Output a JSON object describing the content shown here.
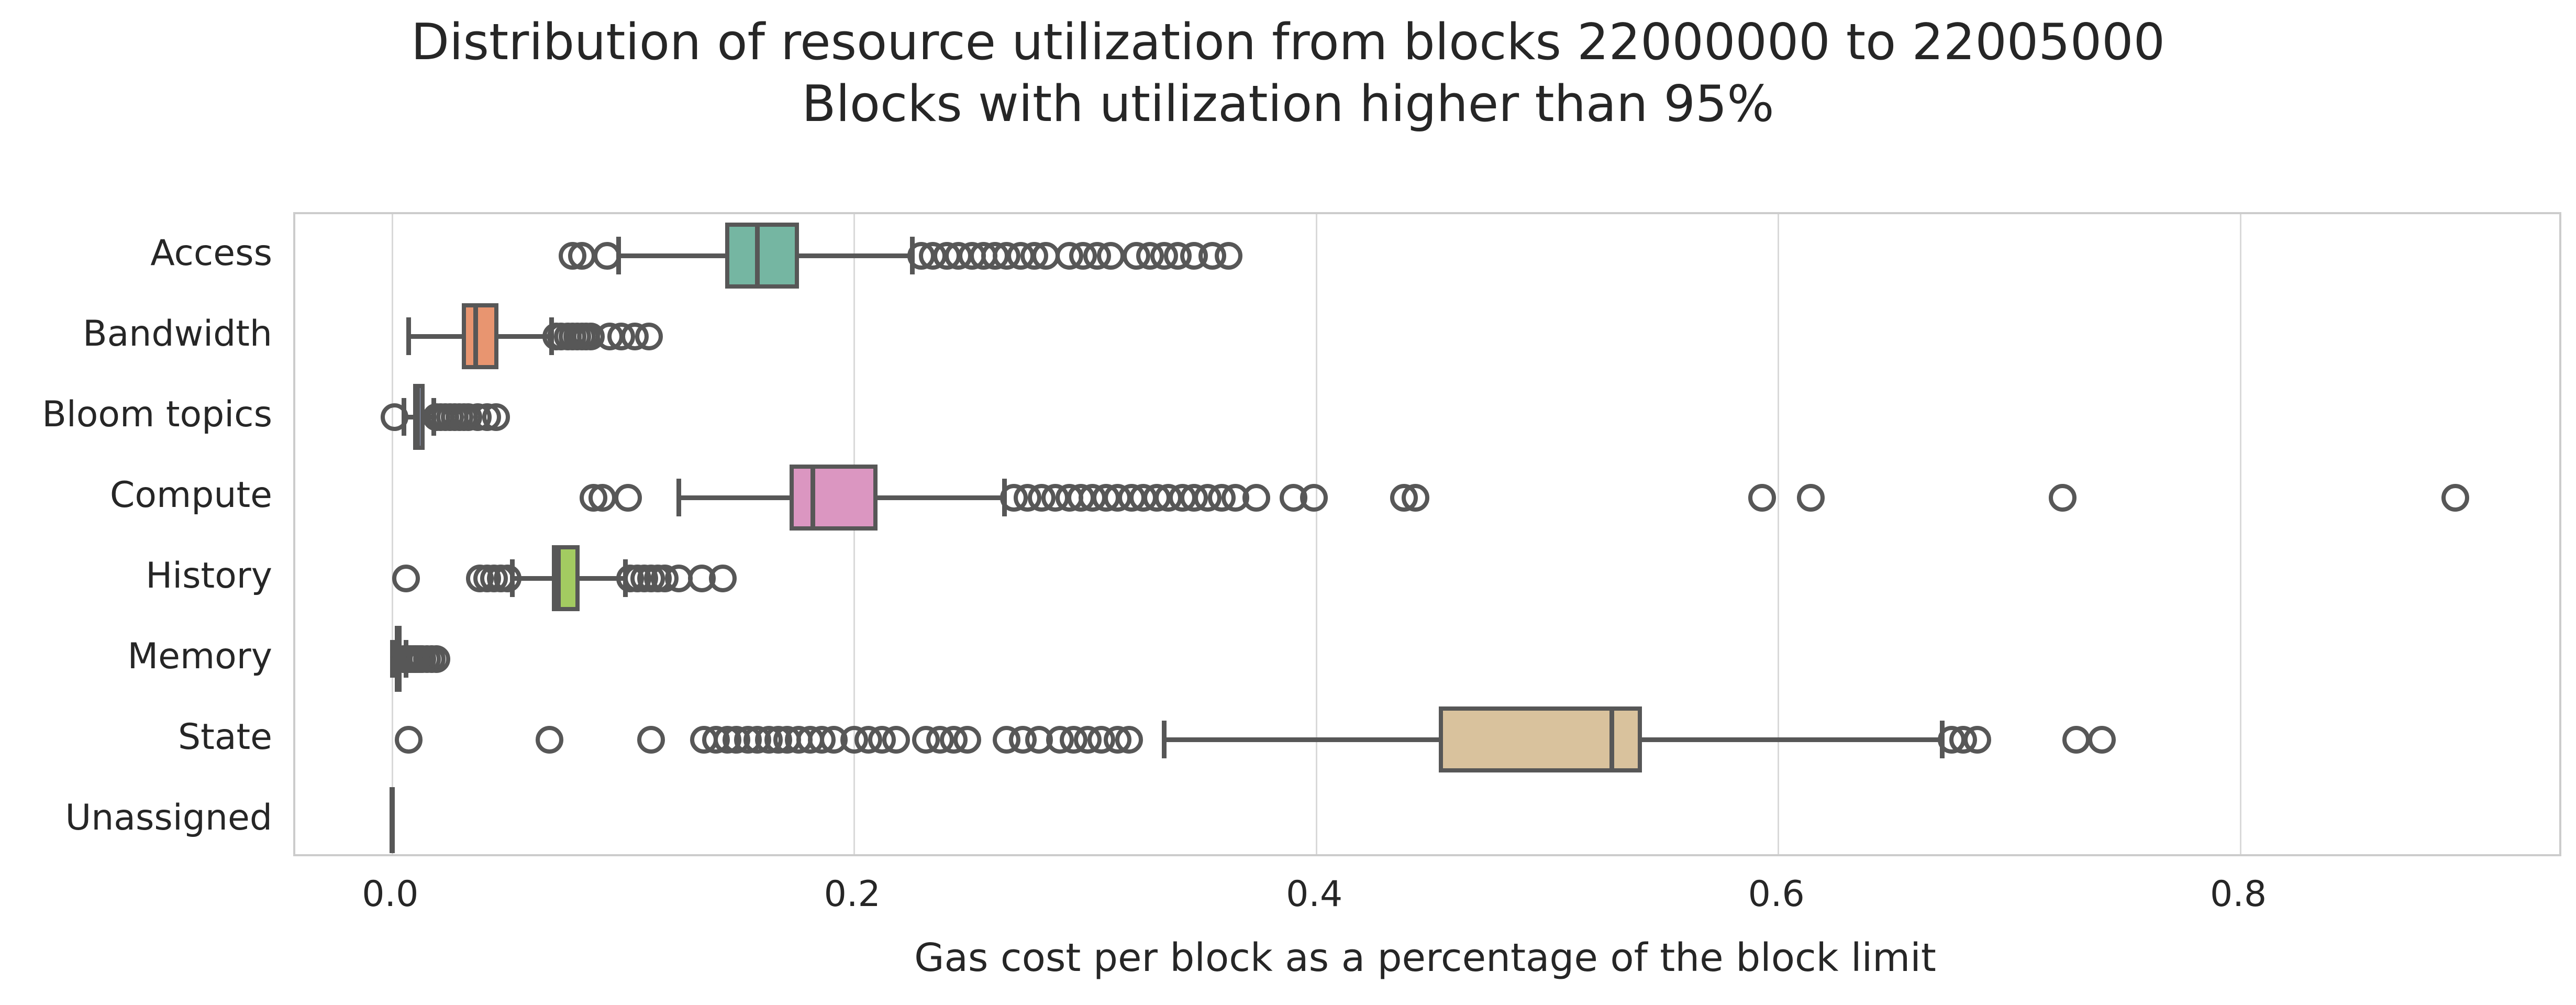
{
  "title": {
    "line1": "Distribution of resource utilization from blocks 22000000 to 22005000",
    "line2": "Blocks with utilization higher than 95%"
  },
  "x_axis": {
    "label": "Gas cost per block as a percentage of the block limit",
    "tick_labels": [
      "0.0",
      "0.2",
      "0.4",
      "0.6",
      "0.8"
    ]
  },
  "style": {
    "edge_color": "#575757",
    "grid_color": "#d9d9d9",
    "spine_color": "#cccccc",
    "text_color": "#262626",
    "background": "#ffffff"
  },
  "chart_data": {
    "type": "boxplot-horizontal",
    "title": "Distribution of resource utilization from blocks 22000000 to 22005000",
    "subtitle": "Blocks with utilization higher than 95%",
    "xlabel": "Gas cost per block as a percentage of the block limit",
    "ylabel": "",
    "xlim": [
      -0.042,
      0.938
    ],
    "xticks": [
      0.0,
      0.2,
      0.4,
      0.6,
      0.8
    ],
    "grid": "vertical",
    "categories": [
      "Access",
      "Bandwidth",
      "Bloom topics",
      "Compute",
      "History",
      "Memory",
      "State",
      "Unassigned"
    ],
    "series": [
      {
        "name": "Access",
        "color": "#75b6a2",
        "whislo": 0.098,
        "q1": 0.144,
        "med": 0.158,
        "q3": 0.176,
        "whishi": 0.225,
        "outliers": [
          0.078,
          0.082,
          0.093,
          0.229,
          0.234,
          0.24,
          0.245,
          0.251,
          0.256,
          0.261,
          0.266,
          0.272,
          0.278,
          0.283,
          0.293,
          0.299,
          0.305,
          0.311,
          0.322,
          0.328,
          0.334,
          0.34,
          0.347,
          0.355,
          0.362
        ]
      },
      {
        "name": "Bandwidth",
        "color": "#e89570",
        "whislo": 0.007,
        "q1": 0.03,
        "med": 0.036,
        "q3": 0.046,
        "whishi": 0.069,
        "outliers": [
          0.071,
          0.073,
          0.076,
          0.078,
          0.08,
          0.082,
          0.084,
          0.086,
          0.094,
          0.099,
          0.105,
          0.111
        ]
      },
      {
        "name": "Bloom topics",
        "color": "#97a5c9",
        "whislo": 0.005,
        "q1": 0.009,
        "med": 0.011,
        "q3": 0.014,
        "whishi": 0.018,
        "outliers": [
          0.001,
          0.019,
          0.021,
          0.023,
          0.025,
          0.027,
          0.029,
          0.031,
          0.033,
          0.037,
          0.041,
          0.045
        ]
      },
      {
        "name": "Compute",
        "color": "#db96c1",
        "whislo": 0.124,
        "q1": 0.172,
        "med": 0.182,
        "q3": 0.21,
        "whishi": 0.265,
        "outliers": [
          0.087,
          0.091,
          0.102,
          0.269,
          0.275,
          0.281,
          0.287,
          0.293,
          0.298,
          0.303,
          0.309,
          0.314,
          0.32,
          0.325,
          0.331,
          0.336,
          0.342,
          0.347,
          0.353,
          0.359,
          0.365,
          0.374,
          0.39,
          0.399,
          0.438,
          0.443,
          0.593,
          0.614,
          0.723,
          0.893
        ]
      },
      {
        "name": "History",
        "color": "#a3cb61",
        "whislo": 0.052,
        "q1": 0.069,
        "med": 0.072,
        "q3": 0.081,
        "whishi": 0.101,
        "outliers": [
          0.006,
          0.038,
          0.041,
          0.044,
          0.047,
          0.05,
          0.103,
          0.106,
          0.109,
          0.112,
          0.115,
          0.118,
          0.124,
          0.134,
          0.143
        ]
      },
      {
        "name": "Memory",
        "color": "#e3cf56",
        "whislo": 0.0,
        "q1": 0.001,
        "med": 0.002,
        "q3": 0.004,
        "whishi": 0.006,
        "outliers": [
          0.005,
          0.006,
          0.007,
          0.008,
          0.009,
          0.01,
          0.011,
          0.012,
          0.013,
          0.015,
          0.017,
          0.019
        ]
      },
      {
        "name": "State",
        "color": "#d9c29d",
        "whislo": 0.334,
        "q1": 0.453,
        "med": 0.528,
        "q3": 0.541,
        "whishi": 0.671,
        "outliers": [
          0.007,
          0.068,
          0.112,
          0.135,
          0.14,
          0.145,
          0.149,
          0.154,
          0.158,
          0.163,
          0.167,
          0.171,
          0.176,
          0.181,
          0.186,
          0.191,
          0.2,
          0.206,
          0.212,
          0.218,
          0.231,
          0.237,
          0.243,
          0.249,
          0.266,
          0.273,
          0.28,
          0.289,
          0.295,
          0.301,
          0.307,
          0.314,
          0.319,
          0.675,
          0.68,
          0.686,
          0.729,
          0.74
        ]
      },
      {
        "name": "Unassigned",
        "color": "#b3b3b3",
        "whislo": 0.0,
        "q1": 0.0,
        "med": 0.0,
        "q3": 0.0,
        "whishi": 0.0,
        "outliers": []
      }
    ]
  }
}
